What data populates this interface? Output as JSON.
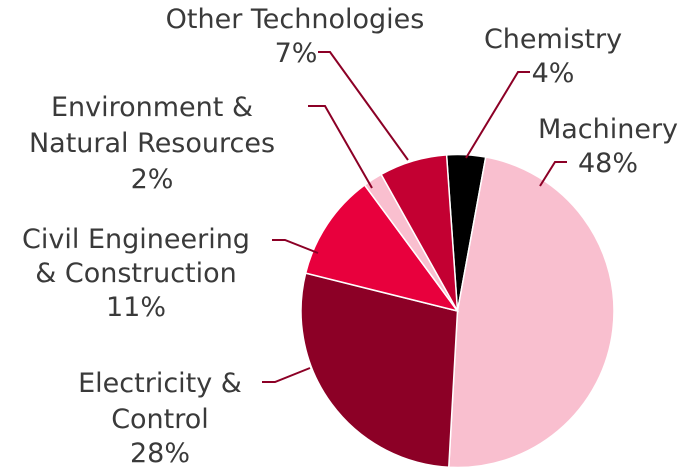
{
  "chart_data": {
    "type": "pie",
    "title": "",
    "start_angle_deg": -4,
    "slices": [
      {
        "label": [
          "Chemistry"
        ],
        "value": 4,
        "value_label": "4%",
        "color": "#000000"
      },
      {
        "label": [
          "Machinery"
        ],
        "value": 48,
        "value_label": "48%",
        "color": "#f9bfcf"
      },
      {
        "label": [
          "Electricity &",
          "Control"
        ],
        "value": 28,
        "value_label": "28%",
        "color": "#8c0026"
      },
      {
        "label": [
          "Civil Engineering",
          "& Construction"
        ],
        "value": 11,
        "value_label": "11%",
        "color": "#e8003d"
      },
      {
        "label": [
          "Environment &",
          "Natural Resources"
        ],
        "value": 2,
        "value_label": "2%",
        "color": "#f9bfcf"
      },
      {
        "label": [
          "Other Technologies"
        ],
        "value": 7,
        "value_label": "7%",
        "color": "#c30032"
      }
    ],
    "leader_color": "#8c0026"
  }
}
